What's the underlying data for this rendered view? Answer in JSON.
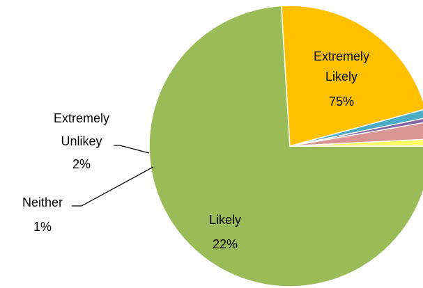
{
  "chart_data": {
    "type": "pie",
    "title": "",
    "slices": [
      {
        "label": "Extremely Likely",
        "value": 75,
        "color": "#9BBB59"
      },
      {
        "label": "Likely",
        "value": 22,
        "color": "#FFC000"
      },
      {
        "label": "Neither",
        "value": 1,
        "color": "#4BACC6"
      },
      {
        "label": "",
        "value": 0.5,
        "color": "#8064A2"
      },
      {
        "label": "Extremely Unlikey",
        "value": 2,
        "color": "#D99694"
      },
      {
        "label": "",
        "value": 0.8,
        "color": "#FFFF66"
      }
    ],
    "data_labels": [
      {
        "lines": [
          "Extremely",
          "Likely",
          "75%"
        ]
      },
      {
        "lines": [
          "Likely",
          "22%"
        ]
      },
      {
        "lines": [
          "Extremely",
          "Unlikey",
          "2%"
        ]
      },
      {
        "lines": [
          "Neither",
          "1%"
        ]
      }
    ],
    "legend": "none"
  }
}
